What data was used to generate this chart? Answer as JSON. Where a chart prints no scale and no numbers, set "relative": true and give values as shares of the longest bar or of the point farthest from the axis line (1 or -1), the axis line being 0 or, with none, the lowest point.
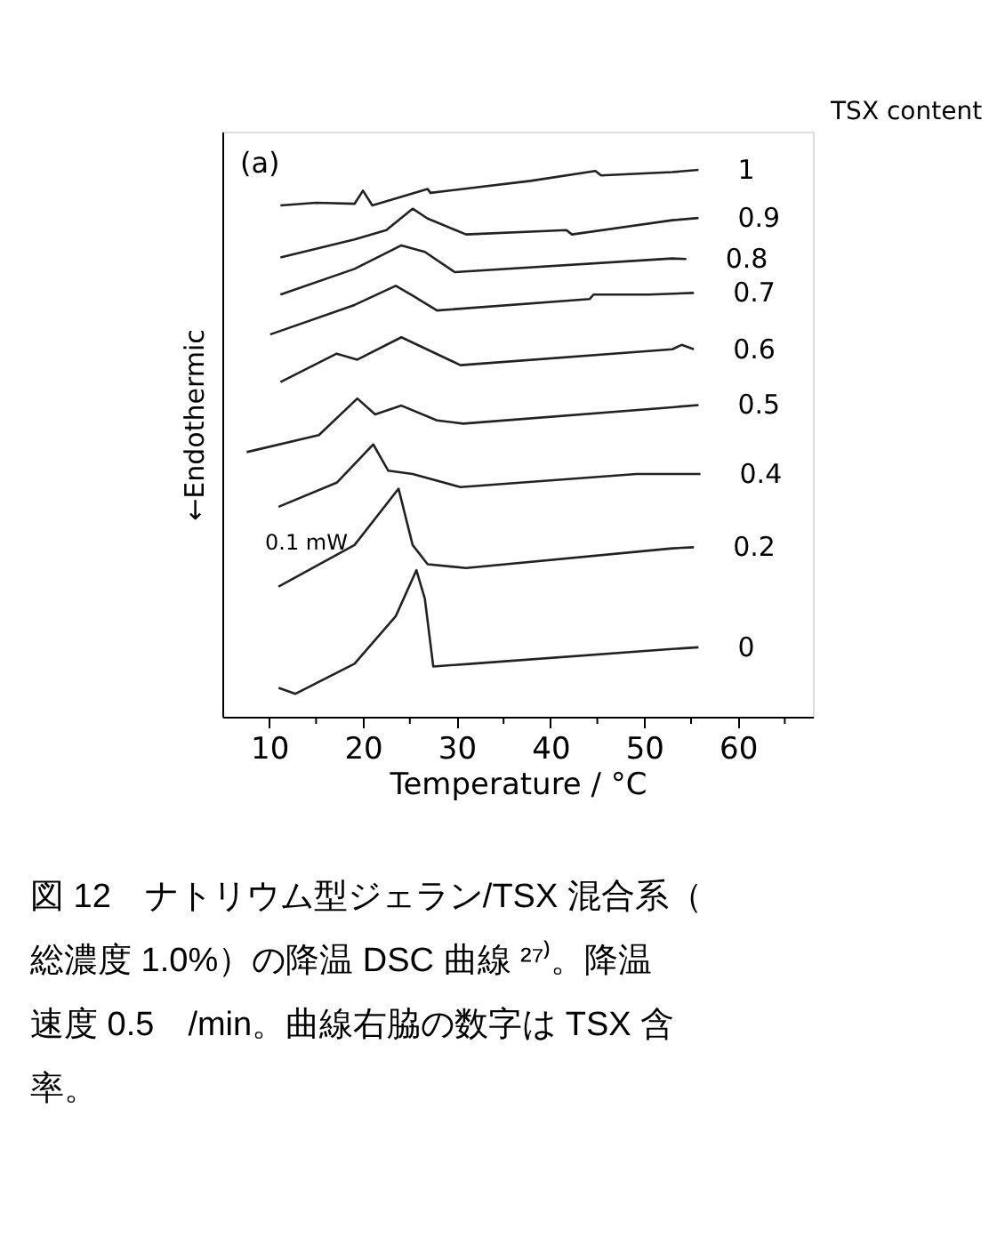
{
  "chart_data": {
    "type": "line",
    "relative": true,
    "xlabel": "Temperature / °C",
    "ylabel": "←Endothermic",
    "legend_title": "TSX content",
    "xlim": [
      5,
      68
    ],
    "xticks": [
      10,
      {
        "value": 15,
        "label": null
      },
      20,
      {
        "value": 25,
        "label": null
      },
      30,
      {
        "value": 35,
        "label": null
      },
      40,
      {
        "value": 45,
        "label": null
      },
      50,
      {
        "value": 55,
        "label": null
      },
      60,
      {
        "value": 65,
        "label": null
      }
    ],
    "grid": false,
    "legend": false,
    "marker": "none",
    "line_style": "solid",
    "annotations": [
      "(a)",
      "0.1 mW",
      "図 12　ナトリウム型ジェラン/TSX 混合系（総濃度 1.0%）の降温 DSC 曲線 ²⁷⁾。降温速度 0.5　/min。曲線右脇の数字は TSX 含率。"
    ],
    "series": [
      {
        "name": "1",
        "color": "#222222",
        "x": [
          11.2,
          15,
          19.1,
          20,
          21,
          26.9,
          27.2,
          37.9,
          44.8,
          45.4,
          53,
          55.8
        ],
        "values": [
          0.935,
          0.94,
          0.938,
          0.962,
          0.935,
          0.965,
          0.958,
          0.98,
          0.998,
          0.99,
          0.996,
          1.0
        ]
      },
      {
        "name": "0.9",
        "color": "#222222",
        "x": [
          11.2,
          19.1,
          22.5,
          25.3,
          26.9,
          31,
          41.7,
          42.3,
          53,
          55.8
        ],
        "values": [
          0.84,
          0.873,
          0.89,
          0.929,
          0.911,
          0.882,
          0.89,
          0.882,
          0.908,
          0.912
        ]
      },
      {
        "name": "0.8",
        "color": "#222222",
        "x": [
          11.2,
          19.1,
          24.1,
          26.6,
          29.8,
          53,
          54.5
        ],
        "values": [
          0.772,
          0.819,
          0.862,
          0.85,
          0.813,
          0.838,
          0.837
        ]
      },
      {
        "name": "0.7",
        "color": "#222222",
        "x": [
          10.1,
          19.1,
          23.5,
          25.3,
          27.9,
          44.2,
          44.6,
          50.5,
          55.3
        ],
        "values": [
          0.699,
          0.753,
          0.788,
          0.77,
          0.743,
          0.764,
          0.772,
          0.772,
          0.775
        ]
      },
      {
        "name": "0.6",
        "color": "#222222",
        "x": [
          11.2,
          17.2,
          19.4,
          24.1,
          30.4,
          53,
          54,
          55.3
        ],
        "values": [
          0.612,
          0.664,
          0.653,
          0.694,
          0.643,
          0.672,
          0.68,
          0.672
        ]
      },
      {
        "name": "0.5",
        "color": "#222222",
        "x": [
          7.6,
          15.3,
          19.4,
          21.3,
          24.1,
          27.9,
          30.7,
          53,
          55.8
        ],
        "values": [
          0.484,
          0.515,
          0.582,
          0.553,
          0.569,
          0.542,
          0.536,
          0.566,
          0.57
        ]
      },
      {
        "name": "0.4",
        "color": "#222222",
        "x": [
          11,
          17.2,
          21.1,
          22.7,
          25.3,
          30.4,
          49.2,
          56
        ],
        "values": [
          0.384,
          0.428,
          0.498,
          0.45,
          0.444,
          0.42,
          0.444,
          0.444
        ]
      },
      {
        "name": "0.2",
        "color": "#222222",
        "x": [
          11,
          19.1,
          23.8,
          25.3,
          26.9,
          31,
          53,
          55.3
        ],
        "values": [
          0.238,
          0.314,
          0.417,
          0.314,
          0.279,
          0.272,
          0.308,
          0.31
        ]
      },
      {
        "name": "0",
        "color": "#222222",
        "x": [
          11,
          12.8,
          19.1,
          23.5,
          25.7,
          26.6,
          27.5,
          31.6,
          53,
          55.8
        ],
        "values": [
          0.053,
          0.042,
          0.097,
          0.184,
          0.268,
          0.216,
          0.092,
          0.097,
          0.124,
          0.127
        ]
      }
    ]
  }
}
